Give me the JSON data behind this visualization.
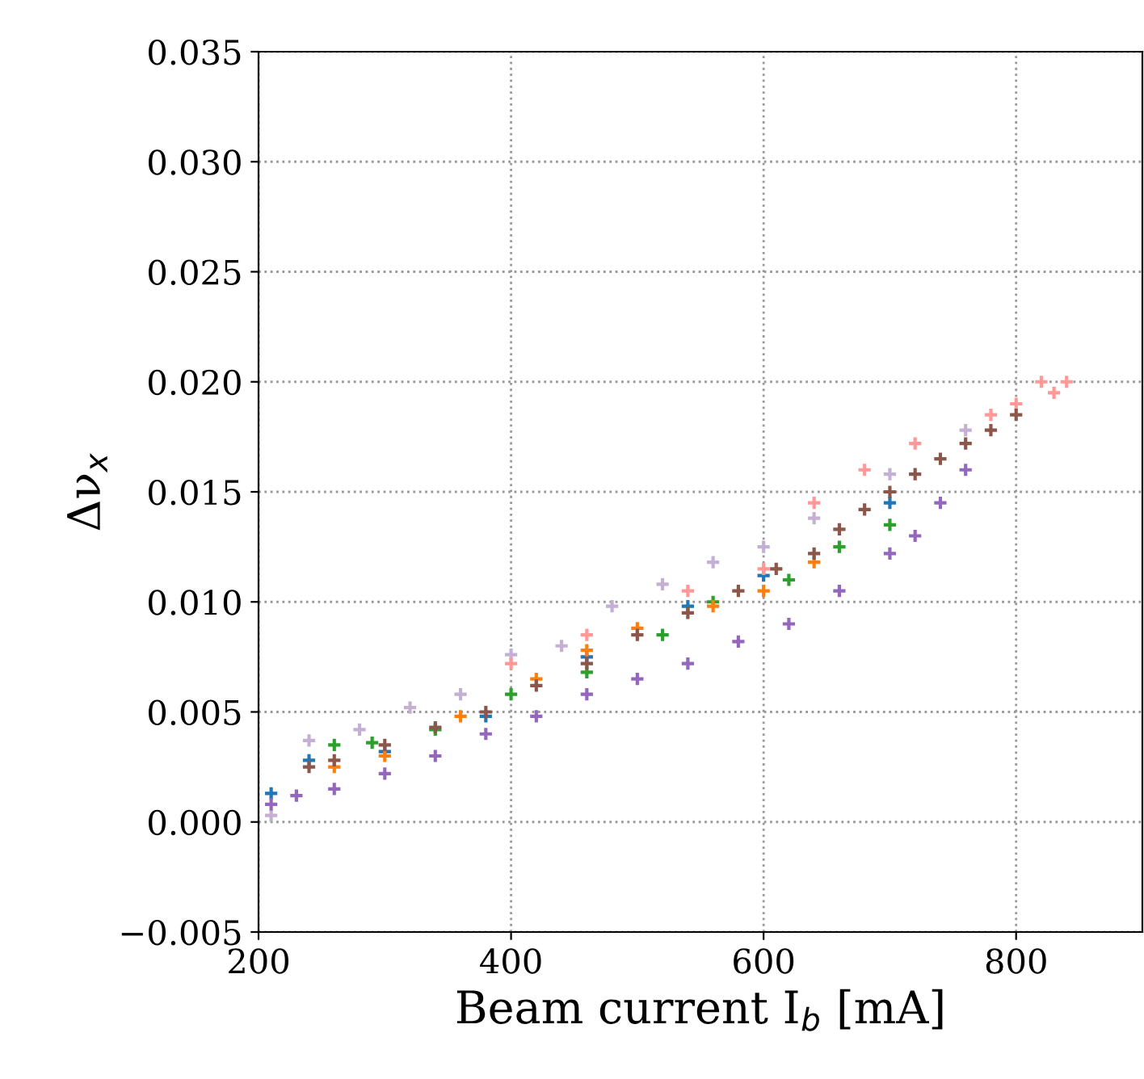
{
  "chart_data": {
    "type": "scatter",
    "xlabel": "Beam current I$_{b}$ [mA]",
    "ylabel": "Δν$_{x}$",
    "xlim": [
      200,
      900
    ],
    "ylim": [
      -0.005,
      0.035
    ],
    "xticks": [
      200,
      400,
      600,
      800
    ],
    "yticks": [
      {
        "value": -0.005,
        "label": "−0.005"
      },
      {
        "value": 0,
        "label": "0.000"
      },
      {
        "value": 0.005,
        "label": "0.005"
      },
      {
        "value": 0.01,
        "label": "0.010"
      },
      {
        "value": 0.015,
        "label": "0.015"
      },
      {
        "value": 0.02,
        "label": "0.020"
      },
      {
        "value": 0.025,
        "label": "0.025"
      },
      {
        "value": 0.03,
        "label": "0.030"
      },
      {
        "value": 0.035,
        "label": "0.035"
      }
    ],
    "grid": true,
    "marker": "cross",
    "series": [
      {
        "color": "#c5b0d5",
        "x": [
          210,
          240,
          280,
          320,
          360,
          400,
          440,
          480,
          520,
          560,
          600,
          640,
          700,
          760
        ],
        "values": [
          0.0003,
          0.0037,
          0.0042,
          0.0052,
          0.0058,
          0.0076,
          0.008,
          0.0098,
          0.0108,
          0.0118,
          0.0125,
          0.0138,
          0.0158,
          0.0178
        ]
      },
      {
        "color": "#1f77b4",
        "x": [
          210,
          240,
          300,
          380,
          460,
          540,
          600,
          700
        ],
        "values": [
          0.0013,
          0.0028,
          0.0032,
          0.0048,
          0.0075,
          0.0098,
          0.0112,
          0.0145
        ]
      },
      {
        "color": "#2ca02c",
        "x": [
          260,
          290,
          340,
          400,
          460,
          520,
          560,
          620,
          660,
          700
        ],
        "values": [
          0.0035,
          0.0036,
          0.0042,
          0.0058,
          0.0068,
          0.0085,
          0.01,
          0.011,
          0.0125,
          0.0135
        ]
      },
      {
        "color": "#ff7f0e",
        "x": [
          260,
          300,
          360,
          420,
          460,
          500,
          560,
          600,
          640
        ],
        "values": [
          0.0025,
          0.003,
          0.0048,
          0.0065,
          0.0078,
          0.0088,
          0.0098,
          0.0105,
          0.0118
        ]
      },
      {
        "color": "#9467bd",
        "x": [
          210,
          230,
          260,
          300,
          340,
          380,
          420,
          460,
          500,
          540,
          580,
          620,
          660,
          700,
          720,
          740,
          760
        ],
        "values": [
          0.0008,
          0.0012,
          0.0015,
          0.0022,
          0.003,
          0.004,
          0.0048,
          0.0058,
          0.0065,
          0.0072,
          0.0082,
          0.009,
          0.0105,
          0.0122,
          0.013,
          0.0145,
          0.016
        ]
      },
      {
        "color": "#ff9896",
        "x": [
          400,
          460,
          540,
          600,
          640,
          680,
          720,
          780,
          800,
          820,
          830,
          840
        ],
        "values": [
          0.0072,
          0.0085,
          0.0105,
          0.0115,
          0.0145,
          0.016,
          0.0172,
          0.0185,
          0.019,
          0.02,
          0.0195,
          0.02
        ]
      },
      {
        "color": "#8c564b",
        "x": [
          240,
          260,
          300,
          340,
          380,
          420,
          460,
          500,
          540,
          580,
          610,
          640,
          660,
          680,
          700,
          720,
          740,
          760,
          780,
          800
        ],
        "values": [
          0.0025,
          0.0028,
          0.0035,
          0.0043,
          0.005,
          0.0062,
          0.0072,
          0.0085,
          0.0095,
          0.0105,
          0.0115,
          0.0122,
          0.0133,
          0.0142,
          0.015,
          0.0158,
          0.0165,
          0.0172,
          0.0178,
          0.0185
        ]
      }
    ]
  }
}
